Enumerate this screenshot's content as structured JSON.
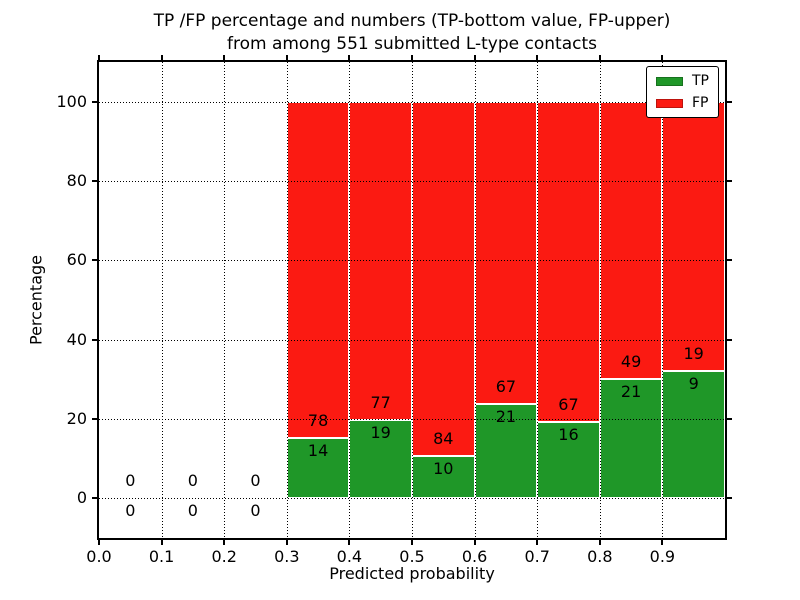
{
  "figure": {
    "title_line1": "TP /FP percentage and numbers (TP-bottom value, FP-upper)",
    "title_line2": "from among 551 submitted L-type contacts",
    "background": "#ffffff"
  },
  "chart_data": {
    "type": "bar",
    "stacked": true,
    "title": "TP /FP percentage and numbers (TP-bottom value, FP-upper)\nfrom among 551 submitted L-type contacts",
    "xlabel": "Predicted probability",
    "ylabel": "Percentage",
    "xlim": [
      0.0,
      1.0
    ],
    "ylim": [
      -10,
      110
    ],
    "bar_width": 0.1,
    "total_contacts": 551,
    "x_tick_values": [
      0.0,
      0.1,
      0.2,
      0.3,
      0.4,
      0.5,
      0.6,
      0.7,
      0.8,
      0.9
    ],
    "x_tick_labels": [
      "0.0",
      "0.1",
      "0.2",
      "0.3",
      "0.4",
      "0.5",
      "0.6",
      "0.7",
      "0.8",
      "0.9"
    ],
    "y_tick_values": [
      0,
      20,
      40,
      60,
      80,
      100
    ],
    "y_tick_labels": [
      "0",
      "20",
      "40",
      "60",
      "80",
      "100"
    ],
    "x_gridlines": [
      0.1,
      0.2,
      0.3,
      0.4,
      0.5,
      0.6,
      0.7,
      0.8,
      0.9
    ],
    "grid_style": "dotted",
    "grid_over_bars": true,
    "legend_position": "upper right",
    "legend": [
      {
        "label": "TP",
        "color": "#1f9728"
      },
      {
        "label": "FP",
        "color": "#fb1a12"
      }
    ],
    "colors": {
      "tp": "#1f9728",
      "fp": "#fb1a12",
      "bar_edge": "#ffffff",
      "grid": "#000000"
    },
    "categories": [
      0.05,
      0.15,
      0.25,
      0.35,
      0.45,
      0.55,
      0.65,
      0.75,
      0.85,
      0.95
    ],
    "series": [
      {
        "name": "TP",
        "unit": "percent",
        "values": [
          0,
          0,
          0,
          15.22,
          19.79,
          10.64,
          23.86,
          19.28,
          30.0,
          32.14
        ],
        "counts": [
          0,
          0,
          0,
          14,
          19,
          10,
          21,
          16,
          21,
          9
        ]
      },
      {
        "name": "FP",
        "unit": "percent",
        "values": [
          0,
          0,
          0,
          84.78,
          80.21,
          89.36,
          76.14,
          80.72,
          70.0,
          67.86
        ],
        "counts": [
          0,
          0,
          0,
          78,
          77,
          84,
          67,
          67,
          49,
          19
        ]
      }
    ],
    "bins": [
      {
        "x_start": 0.0,
        "x_end": 0.1,
        "tp_count": 0,
        "fp_count": 0,
        "tp_pct": 0,
        "fp_pct": 0
      },
      {
        "x_start": 0.1,
        "x_end": 0.2,
        "tp_count": 0,
        "fp_count": 0,
        "tp_pct": 0,
        "fp_pct": 0
      },
      {
        "x_start": 0.2,
        "x_end": 0.3,
        "tp_count": 0,
        "fp_count": 0,
        "tp_pct": 0,
        "fp_pct": 0
      },
      {
        "x_start": 0.3,
        "x_end": 0.4,
        "tp_count": 14,
        "fp_count": 78,
        "tp_pct": 15.22,
        "fp_pct": 84.78
      },
      {
        "x_start": 0.4,
        "x_end": 0.5,
        "tp_count": 19,
        "fp_count": 77,
        "tp_pct": 19.79,
        "fp_pct": 80.21
      },
      {
        "x_start": 0.5,
        "x_end": 0.6,
        "tp_count": 10,
        "fp_count": 84,
        "tp_pct": 10.64,
        "fp_pct": 89.36
      },
      {
        "x_start": 0.6,
        "x_end": 0.7,
        "tp_count": 21,
        "fp_count": 67,
        "tp_pct": 23.86,
        "fp_pct": 76.14
      },
      {
        "x_start": 0.7,
        "x_end": 0.8,
        "tp_count": 16,
        "fp_count": 67,
        "tp_pct": 19.28,
        "fp_pct": 80.72
      },
      {
        "x_start": 0.8,
        "x_end": 0.9,
        "tp_count": 21,
        "fp_count": 49,
        "tp_pct": 30.0,
        "fp_pct": 70.0
      },
      {
        "x_start": 0.9,
        "x_end": 1.0,
        "tp_count": 9,
        "fp_count": 19,
        "tp_pct": 32.14,
        "fp_pct": 67.86
      }
    ]
  }
}
